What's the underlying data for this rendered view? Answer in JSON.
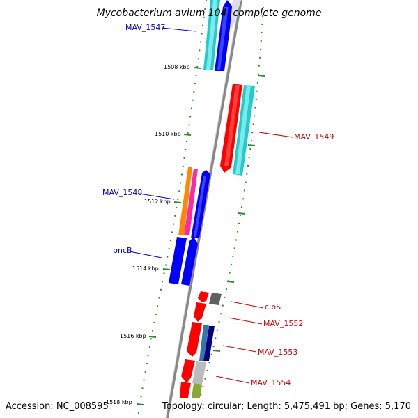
{
  "title": "Mycobacterium avium 104, complete genome",
  "footer": {
    "accession": "Accession: NC_008595",
    "summary": "Topology: circular; Length: 5,475,491 bp; Genes: 5,170"
  },
  "ticks": [
    {
      "label": "1508 kbp"
    },
    {
      "label": "1510 kbp"
    },
    {
      "label": "1512 kbp"
    },
    {
      "label": "1514 kbp"
    },
    {
      "label": "1516 kbp"
    },
    {
      "label": "1518 kbp"
    }
  ],
  "genes": [
    {
      "name": "MAV_1547",
      "strand": "forward",
      "color": "#0000cc"
    },
    {
      "name": "MAV_1548",
      "strand": "forward",
      "color": "#0000cc"
    },
    {
      "name": "pncB",
      "strand": "forward",
      "color": "#0000cc"
    },
    {
      "name": "MAV_1549",
      "strand": "reverse",
      "color": "#cc0000"
    },
    {
      "name": "clpS",
      "strand": "reverse",
      "color": "#cc0000"
    },
    {
      "name": "MAV_1552",
      "strand": "reverse",
      "color": "#cc0000"
    },
    {
      "name": "MAV_1553",
      "strand": "reverse",
      "color": "#cc0000"
    },
    {
      "name": "MAV_1554",
      "strand": "reverse",
      "color": "#cc0000"
    }
  ],
  "colors": {
    "backbone": "#888888",
    "forward_cds": "#0000ff",
    "reverse_cds": "#ff0000",
    "orf": "#20cccc",
    "gc_dots": "#2e8b2e"
  }
}
